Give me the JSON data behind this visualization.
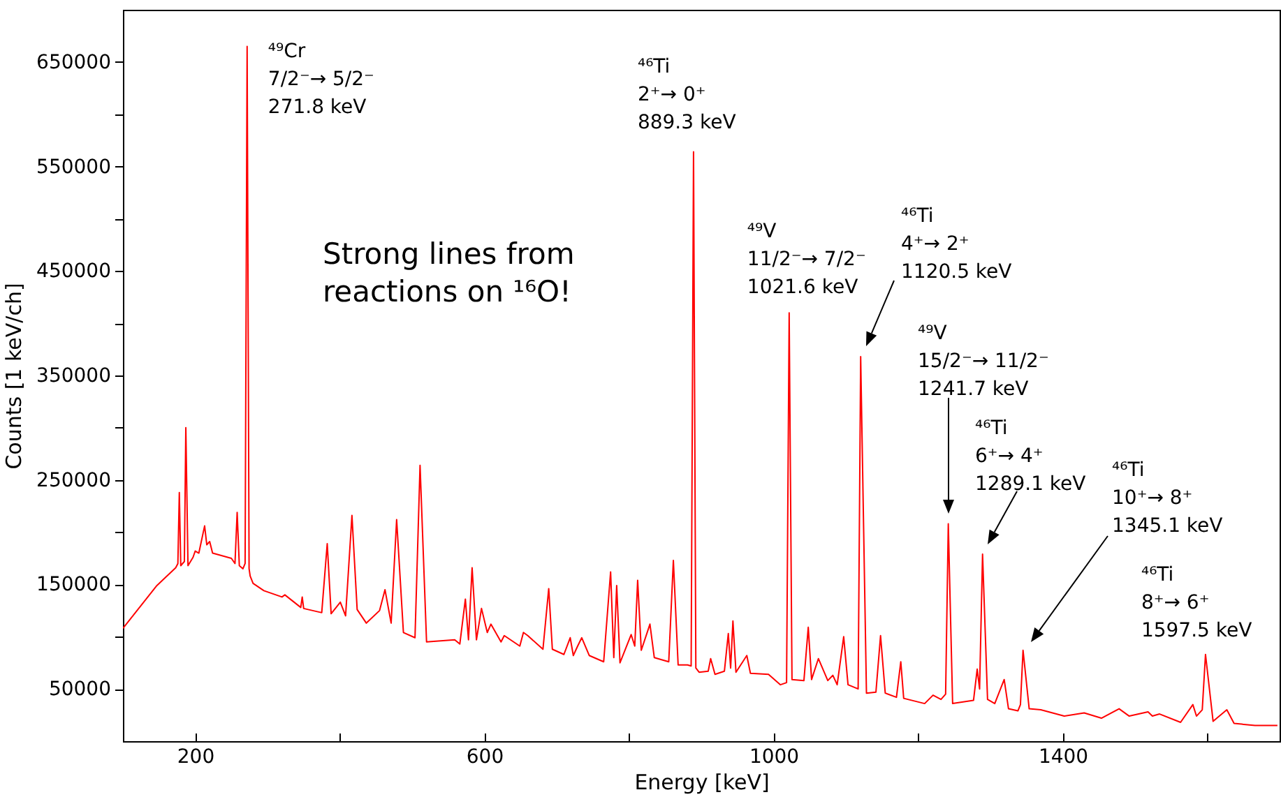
{
  "chart_data": {
    "type": "line",
    "xlabel": "Energy [keV]",
    "ylabel": "Counts [1 keV/ch]",
    "xlim": [
      100,
      1700
    ],
    "xticks": [
      200,
      {
        "value": 400,
        "label": null
      },
      600,
      {
        "value": 800,
        "label": null
      },
      1000,
      {
        "value": 1200,
        "label": null
      },
      1400,
      {
        "value": 1600,
        "label": null
      }
    ],
    "ylim": [
      0,
      700000
    ],
    "yticks": [
      50000,
      {
        "value": 100000,
        "label": null
      },
      150000,
      {
        "value": 200000,
        "label": null
      },
      250000,
      {
        "value": 300000,
        "label": null
      },
      350000,
      {
        "value": 400000,
        "label": null
      },
      450000,
      {
        "value": 500000,
        "label": null
      },
      550000,
      {
        "value": 600000,
        "label": null
      },
      650000
    ],
    "x": [
      100,
      147,
      173,
      176,
      178,
      180,
      185,
      187,
      190,
      197,
      200,
      205,
      213,
      216,
      220,
      224,
      250,
      255,
      258,
      261,
      266,
      269,
      271.8,
      274.5,
      276,
      280,
      295,
      320,
      324,
      346,
      348,
      350,
      375,
      382.6,
      388,
      400.7,
      408,
      416.8,
      424,
      436.7,
      455,
      462.5,
      471,
      478.6,
      488,
      504,
      511,
      520,
      559,
      566,
      573.7,
      578,
      583,
      589,
      596,
      604,
      609,
      623,
      627.5,
      649,
      654,
      660,
      681,
      689,
      694,
      710,
      718.7,
      723,
      729,
      734.7,
      745,
      765,
      774.6,
      779,
      783,
      787.6,
      803,
      808,
      812,
      817,
      829,
      835,
      855,
      861.4,
      868,
      881,
      886,
      889.3,
      892.5,
      897,
      909.6,
      913,
      919,
      932,
      937.4,
      940.6,
      943.8,
      948,
      963,
      968,
      993,
      1009.5,
      1018,
      1021.6,
      1025.5,
      1042,
      1048,
      1052.6,
      1062,
      1075,
      1082,
      1088,
      1097,
      1103,
      1117,
      1120.5,
      1128.5,
      1141.6,
      1148,
      1154.5,
      1170,
      1176,
      1180,
      1209,
      1220.6,
      1231.6,
      1238,
      1241.7,
      1247.7,
      1276.6,
      1281.7,
      1285,
      1289.1,
      1296,
      1306,
      1319,
      1325,
      1338,
      1341.5,
      1345.1,
      1353.6,
      1369.7,
      1402,
      1429.7,
      1453.5,
      1478,
      1492,
      1518,
      1524,
      1534,
      1563,
      1580,
      1585,
      1593,
      1597.5,
      1608,
      1627,
      1637,
      1666,
      1697
    ],
    "series": [
      {
        "color": "#ff0000",
        "values": [
          108000,
          149000,
          166000,
          170000,
          238000,
          168000,
          172000,
          300000,
          168000,
          176000,
          182000,
          180000,
          206000,
          188000,
          191000,
          180000,
          175000,
          170000,
          219000,
          168000,
          165000,
          170000,
          665000,
          165000,
          158000,
          151000,
          144000,
          138000,
          140000,
          128000,
          138000,
          127000,
          123000,
          189000,
          122000,
          133000,
          120000,
          216000,
          126000,
          113000,
          125000,
          145000,
          113000,
          212000,
          104000,
          99000,
          264000,
          95000,
          97000,
          93000,
          136000,
          97000,
          166000,
          97000,
          127000,
          104000,
          112000,
          95000,
          101000,
          91000,
          104000,
          101000,
          88000,
          146000,
          88000,
          83000,
          99000,
          82000,
          91000,
          99000,
          82000,
          76000,
          162000,
          80000,
          149000,
          75000,
          102000,
          91000,
          154000,
          87000,
          112000,
          80000,
          76000,
          173000,
          73000,
          73000,
          72000,
          564000,
          70000,
          66000,
          67000,
          79000,
          64000,
          67000,
          103000,
          70000,
          115000,
          66000,
          82000,
          65000,
          64000,
          54000,
          56000,
          410000,
          59000,
          58000,
          109000,
          59000,
          79000,
          58000,
          63000,
          54000,
          100000,
          54000,
          50000,
          368000,
          46000,
          47000,
          101000,
          46000,
          42000,
          76000,
          41000,
          36000,
          44000,
          40000,
          45000,
          208000,
          36000,
          39000,
          69000,
          50000,
          179000,
          40000,
          36000,
          59000,
          31000,
          29000,
          35000,
          87000,
          31000,
          30000,
          24000,
          27000,
          22000,
          31000,
          24000,
          28000,
          24000,
          26000,
          18000,
          35000,
          24000,
          30000,
          83000,
          19000,
          30000,
          17000,
          15000,
          15000
        ]
      }
    ],
    "annotations": [
      {
        "text": "⁴⁹Cr\n7/2⁻→ 5/2⁻\n271.8 keV",
        "x": 271.8,
        "y": 665000
      },
      {
        "text": "⁴⁶Ti\n2⁺→ 0⁺\n889.3 keV",
        "x": 889.3,
        "y": 564000
      },
      {
        "text": "⁴⁹V\n11/2⁻→ 7/2⁻\n1021.6 keV",
        "x": 1021.6,
        "y": 410000
      },
      "⁴⁶Ti\n4⁺→ 2⁺\n1120.5 keV",
      "⁴⁹V\n15/2⁻→ 11/2⁻\n1241.7 keV",
      "⁴⁶Ti\n6⁺→ 4⁺\n1289.1 keV",
      "⁴⁶Ti\n10⁺→ 8⁺\n1345.1 keV",
      {
        "text": "⁴⁶Ti\n8⁺→ 6⁺\n1597.5 keV",
        "x": 1597.5,
        "y": 83000
      },
      "Strong lines from\nreactions on ¹⁶O!"
    ]
  }
}
